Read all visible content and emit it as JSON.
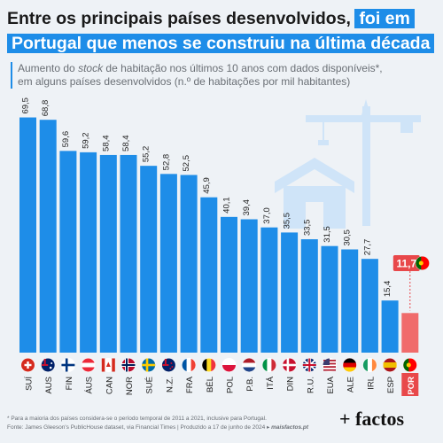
{
  "title": {
    "line1_plain": "Entre os principais países desenvolvidos,",
    "line1_highlight": "foi em",
    "line2_highlight": "Portugal que menos se construiu na última década"
  },
  "subtitle": {
    "part1": "Aumento do",
    "stock": "stock",
    "part2": "de habitação nos últimos 10 anos com dados disponíveis*,",
    "line2": "em alguns países desenvolvidos (n.º de habitações por mil habitantes)"
  },
  "chart_data": {
    "type": "bar",
    "categories": [
      "SUÍ",
      "AUS",
      "FIN",
      "ÁUS",
      "CAN",
      "NOR",
      "SUÉ",
      "N.Z.",
      "FRA",
      "BÉL",
      "POL",
      "P.B.",
      "ITÁ",
      "DIN",
      "R.U.",
      "EUA",
      "ALE",
      "IRL",
      "ESP",
      "POR"
    ],
    "values": [
      69.5,
      68.8,
      59.6,
      59.2,
      58.4,
      58.4,
      55.2,
      52.8,
      52.5,
      45.9,
      40.1,
      39.4,
      37.0,
      35.5,
      33.5,
      31.5,
      30.5,
      27.7,
      15.4,
      11.7
    ],
    "value_labels": [
      "69,5",
      "68,8",
      "59,6",
      "59,2",
      "58,4",
      "58,4",
      "55,2",
      "52,8",
      "52,5",
      "45,9",
      "40,1",
      "39,4",
      "37,0",
      "35,5",
      "33,5",
      "31,5",
      "30,5",
      "27,7",
      "15,4",
      "11,7"
    ],
    "highlight_index": 19,
    "ylim": [
      0,
      72
    ],
    "grid": false,
    "colors": {
      "bar": "#1e8de8",
      "highlight": "#f06b6b",
      "highlight_label_bg": "#e8484a"
    },
    "flags": [
      "ch",
      "au",
      "fi",
      "at",
      "ca",
      "no",
      "se",
      "nz",
      "fr",
      "be",
      "pl",
      "nl",
      "it",
      "dk",
      "gb",
      "us",
      "de",
      "ie",
      "es",
      "pt"
    ]
  },
  "footnote": {
    "line1": "* Para a maioria dos países considera-se o período temporal de 2011 a 2021, inclusive para Portugal.",
    "line2": "Fonte: James Gleeson's PublicHouse dataset, via Financial Times | Produzido a 17 de junho de 2024 ▸",
    "link": "maisfactos.pt"
  },
  "logo": "+ factos",
  "icon": "crane-house-icon"
}
